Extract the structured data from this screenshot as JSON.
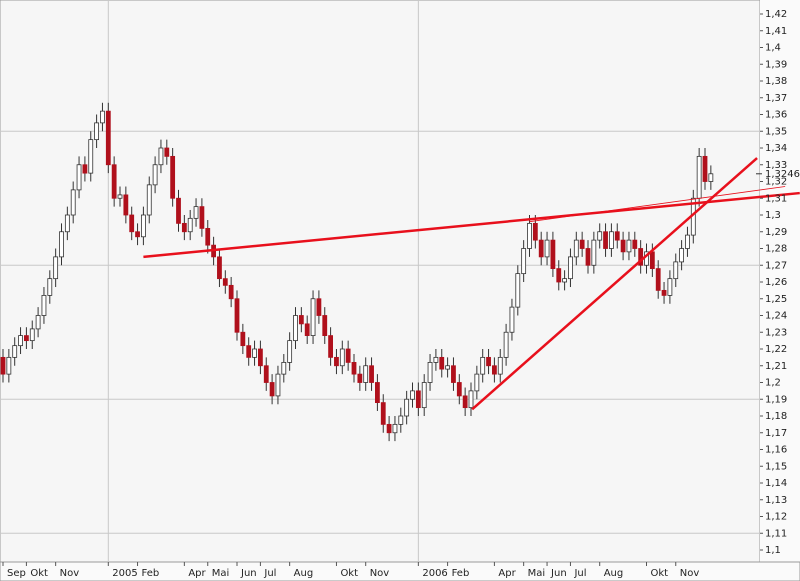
{
  "chart_data": {
    "type": "candlestick",
    "categories": [
      "Sep",
      null,
      null,
      null,
      "Okt",
      null,
      null,
      null,
      null,
      "Nov",
      null,
      null,
      null,
      null,
      null,
      null,
      null,
      null,
      "2005",
      null,
      null,
      null,
      null,
      "Feb",
      null,
      null,
      null,
      null,
      null,
      null,
      null,
      "Apr",
      null,
      null,
      null,
      "Mai",
      null,
      null,
      null,
      null,
      "Jun",
      null,
      null,
      null,
      "Jul",
      null,
      null,
      null,
      null,
      "Aug",
      null,
      null,
      null,
      null,
      null,
      null,
      null,
      "Okt",
      null,
      null,
      null,
      null,
      "Nov",
      null,
      null,
      null,
      null,
      null,
      null,
      null,
      null,
      "2006",
      null,
      null,
      null,
      null,
      "Feb",
      null,
      null,
      null,
      null,
      null,
      null,
      null,
      "Apr",
      null,
      null,
      null,
      null,
      "Mai",
      null,
      null,
      null,
      "Jun",
      null,
      null,
      null,
      "Jul",
      null,
      null,
      null,
      null,
      "Aug",
      null,
      null,
      null,
      null,
      null,
      null,
      null,
      "Okt",
      null,
      null,
      null,
      null,
      "Nov",
      null,
      null,
      null,
      null,
      null,
      null
    ],
    "open": [
      1.215,
      1.205,
      1.215,
      1.222,
      1.228,
      1.225,
      1.232,
      1.24,
      1.252,
      1.262,
      1.275,
      1.29,
      1.3,
      1.315,
      1.33,
      1.325,
      1.345,
      1.355,
      1.362,
      1.33,
      1.31,
      1.312,
      1.3,
      1.29,
      1.287,
      1.3,
      1.318,
      1.33,
      1.34,
      1.335,
      1.31,
      1.295,
      1.29,
      1.298,
      1.305,
      1.292,
      1.282,
      1.275,
      1.262,
      1.258,
      1.25,
      1.23,
      1.222,
      1.215,
      1.22,
      1.21,
      1.2,
      1.192,
      1.205,
      1.212,
      1.225,
      1.24,
      1.235,
      1.228,
      1.25,
      1.24,
      1.228,
      1.215,
      1.21,
      1.22,
      1.212,
      1.205,
      1.2,
      1.21,
      1.2,
      1.188,
      1.175,
      1.17,
      1.175,
      1.18,
      1.19,
      1.195,
      1.185,
      1.2,
      1.212,
      1.215,
      1.208,
      1.21,
      1.2,
      1.192,
      1.185,
      1.195,
      1.205,
      1.215,
      1.21,
      1.205,
      1.215,
      1.23,
      1.245,
      1.265,
      1.28,
      1.295,
      1.285,
      1.275,
      1.285,
      1.268,
      1.26,
      1.262,
      1.275,
      1.285,
      1.28,
      1.27,
      1.285,
      1.29,
      1.28,
      1.29,
      1.285,
      1.278,
      1.285,
      1.28,
      1.27,
      1.278,
      1.268,
      1.255,
      1.252,
      1.262,
      1.272,
      1.28,
      1.288,
      1.31,
      1.335,
      1.32
    ],
    "high": [
      1.22,
      1.22,
      1.227,
      1.233,
      1.233,
      1.237,
      1.245,
      1.257,
      1.267,
      1.28,
      1.295,
      1.305,
      1.32,
      1.335,
      1.335,
      1.35,
      1.36,
      1.367,
      1.367,
      1.335,
      1.317,
      1.317,
      1.305,
      1.295,
      1.305,
      1.323,
      1.335,
      1.345,
      1.345,
      1.34,
      1.315,
      1.3,
      1.303,
      1.31,
      1.31,
      1.297,
      1.287,
      1.28,
      1.267,
      1.263,
      1.255,
      1.235,
      1.227,
      1.225,
      1.225,
      1.215,
      1.205,
      1.21,
      1.217,
      1.23,
      1.245,
      1.245,
      1.24,
      1.255,
      1.255,
      1.245,
      1.233,
      1.22,
      1.225,
      1.225,
      1.217,
      1.21,
      1.215,
      1.215,
      1.205,
      1.193,
      1.18,
      1.18,
      1.185,
      1.195,
      1.2,
      1.2,
      1.205,
      1.217,
      1.22,
      1.22,
      1.215,
      1.215,
      1.205,
      1.197,
      1.2,
      1.21,
      1.22,
      1.22,
      1.215,
      1.22,
      1.235,
      1.25,
      1.27,
      1.285,
      1.3,
      1.3,
      1.29,
      1.29,
      1.29,
      1.273,
      1.267,
      1.28,
      1.29,
      1.29,
      1.285,
      1.29,
      1.295,
      1.295,
      1.295,
      1.295,
      1.29,
      1.29,
      1.29,
      1.285,
      1.283,
      1.283,
      1.273,
      1.26,
      1.267,
      1.277,
      1.285,
      1.293,
      1.315,
      1.34,
      1.34,
      1.3296
    ],
    "low": [
      1.2,
      1.2,
      1.21,
      1.217,
      1.22,
      1.22,
      1.227,
      1.235,
      1.247,
      1.257,
      1.27,
      1.285,
      1.295,
      1.31,
      1.32,
      1.32,
      1.34,
      1.35,
      1.325,
      1.305,
      1.305,
      1.295,
      1.285,
      1.282,
      1.282,
      1.295,
      1.313,
      1.325,
      1.33,
      1.305,
      1.29,
      1.285,
      1.285,
      1.293,
      1.287,
      1.277,
      1.27,
      1.257,
      1.253,
      1.245,
      1.225,
      1.217,
      1.21,
      1.21,
      1.205,
      1.195,
      1.187,
      1.187,
      1.2,
      1.207,
      1.22,
      1.23,
      1.223,
      1.223,
      1.235,
      1.223,
      1.21,
      1.205,
      1.205,
      1.207,
      1.2,
      1.195,
      1.195,
      1.195,
      1.183,
      1.17,
      1.165,
      1.165,
      1.17,
      1.175,
      1.185,
      1.18,
      1.18,
      1.195,
      1.207,
      1.203,
      1.203,
      1.195,
      1.187,
      1.18,
      1.18,
      1.19,
      1.2,
      1.205,
      1.2,
      1.2,
      1.21,
      1.225,
      1.24,
      1.26,
      1.275,
      1.28,
      1.27,
      1.27,
      1.263,
      1.255,
      1.255,
      1.257,
      1.27,
      1.275,
      1.265,
      1.265,
      1.28,
      1.275,
      1.275,
      1.28,
      1.273,
      1.273,
      1.275,
      1.265,
      1.265,
      1.263,
      1.25,
      1.247,
      1.247,
      1.257,
      1.267,
      1.275,
      1.283,
      1.305,
      1.315,
      1.315
    ],
    "close": [
      1.205,
      1.215,
      1.222,
      1.228,
      1.225,
      1.232,
      1.24,
      1.252,
      1.262,
      1.275,
      1.29,
      1.3,
      1.315,
      1.33,
      1.325,
      1.345,
      1.355,
      1.362,
      1.33,
      1.31,
      1.312,
      1.3,
      1.29,
      1.287,
      1.3,
      1.318,
      1.33,
      1.34,
      1.335,
      1.31,
      1.295,
      1.29,
      1.298,
      1.305,
      1.292,
      1.282,
      1.275,
      1.262,
      1.258,
      1.25,
      1.23,
      1.222,
      1.215,
      1.22,
      1.21,
      1.2,
      1.192,
      1.205,
      1.212,
      1.225,
      1.24,
      1.235,
      1.228,
      1.25,
      1.24,
      1.228,
      1.215,
      1.21,
      1.22,
      1.212,
      1.205,
      1.2,
      1.21,
      1.2,
      1.188,
      1.175,
      1.17,
      1.175,
      1.18,
      1.19,
      1.195,
      1.185,
      1.2,
      1.212,
      1.215,
      1.208,
      1.21,
      1.2,
      1.192,
      1.185,
      1.195,
      1.205,
      1.215,
      1.21,
      1.205,
      1.215,
      1.23,
      1.245,
      1.265,
      1.28,
      1.295,
      1.285,
      1.275,
      1.285,
      1.268,
      1.26,
      1.262,
      1.275,
      1.285,
      1.28,
      1.27,
      1.285,
      1.29,
      1.28,
      1.29,
      1.285,
      1.278,
      1.285,
      1.28,
      1.27,
      1.278,
      1.268,
      1.255,
      1.252,
      1.262,
      1.272,
      1.28,
      1.288,
      1.31,
      1.335,
      1.32,
      1.3246
    ],
    "up_color": "#ffffff",
    "down_color": "#b0101c",
    "edge_color": "#333333",
    "ylim": [
      1.1,
      1.42
    ],
    "yticks": [
      {
        "value": 1.1,
        "label": "1,1"
      },
      {
        "value": 1.11,
        "label": "1,11"
      },
      {
        "value": 1.12,
        "label": "1,12"
      },
      {
        "value": 1.13,
        "label": "1,13"
      },
      {
        "value": 1.14,
        "label": "1,14"
      },
      {
        "value": 1.15,
        "label": "1,15"
      },
      {
        "value": 1.16,
        "label": "1,16"
      },
      {
        "value": 1.17,
        "label": "1,17"
      },
      {
        "value": 1.18,
        "label": "1,18"
      },
      {
        "value": 1.19,
        "label": "1,19"
      },
      {
        "value": 1.2,
        "label": "1,2"
      },
      {
        "value": 1.21,
        "label": "1,21"
      },
      {
        "value": 1.22,
        "label": "1,22"
      },
      {
        "value": 1.23,
        "label": "1,23"
      },
      {
        "value": 1.24,
        "label": "1,24"
      },
      {
        "value": 1.25,
        "label": "1,25"
      },
      {
        "value": 1.26,
        "label": "1,26"
      },
      {
        "value": 1.27,
        "label": "1,27"
      },
      {
        "value": 1.28,
        "label": "1,28"
      },
      {
        "value": 1.29,
        "label": "1,29"
      },
      {
        "value": 1.3,
        "label": "1,3"
      },
      {
        "value": 1.31,
        "label": "1,31"
      },
      {
        "value": 1.32,
        "label": "1,32"
      },
      {
        "value": 1.33,
        "label": "1,33"
      },
      {
        "value": 1.34,
        "label": "1,34"
      },
      {
        "value": 1.35,
        "label": "1,35"
      },
      {
        "value": 1.36,
        "label": "1,36"
      },
      {
        "value": 1.37,
        "label": "1,37"
      },
      {
        "value": 1.38,
        "label": "1,38"
      },
      {
        "value": 1.39,
        "label": "1,39"
      },
      {
        "value": 1.4,
        "label": "1,4"
      },
      {
        "value": 1.41,
        "label": "1,41"
      },
      {
        "value": 1.42,
        "label": "1,42"
      }
    ],
    "grid_y": [
      1.11,
      1.19,
      1.27,
      1.35
    ],
    "grid_x": [
      18,
      71
    ],
    "last_price": {
      "value": 1.3246,
      "label": "1,3246"
    },
    "trendlines": [
      {
        "color": "#e8101c",
        "width": 2.5,
        "x": [
          24,
          136.2
        ],
        "y": [
          1.275,
          1.3131
        ]
      },
      {
        "color": "#e8101c",
        "width": 2.5,
        "x": [
          80.2,
          128.9
        ],
        "y": [
          1.184,
          1.334
        ]
      },
      {
        "color": "#e8101c",
        "width": 0.8,
        "x": [
          90,
          133.7
        ],
        "y": [
          1.296,
          1.317
        ]
      }
    ]
  }
}
